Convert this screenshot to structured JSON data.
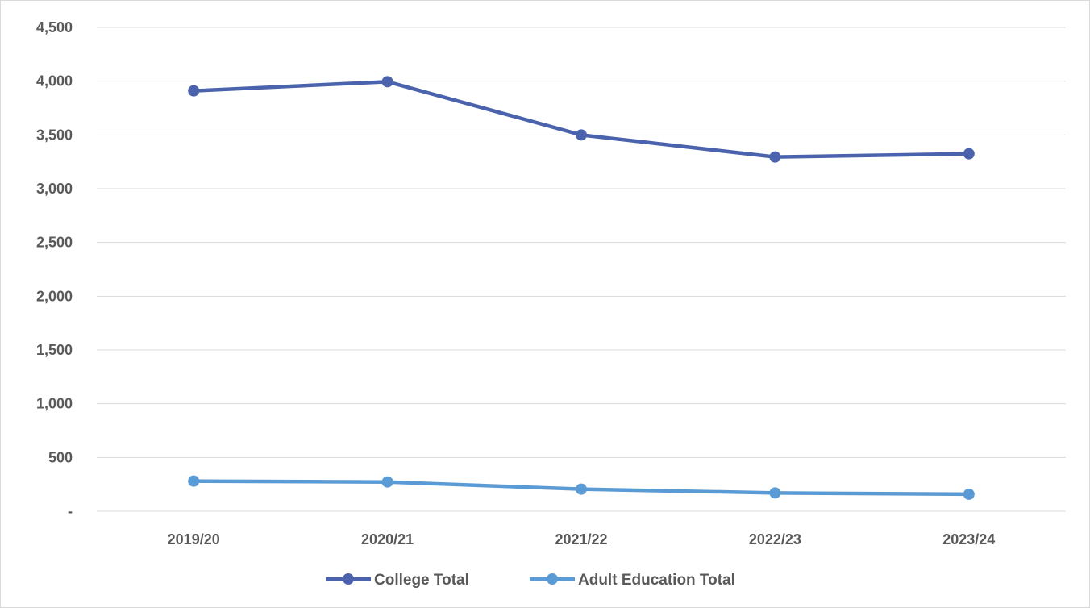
{
  "chart_data": {
    "type": "line",
    "title": "",
    "xlabel": "",
    "ylabel": "",
    "categories": [
      "2019/20",
      "2020/21",
      "2021/22",
      "2022/23",
      "2023/24"
    ],
    "ylim": [
      0,
      4500
    ],
    "y_ticks": [
      0,
      500,
      1000,
      1500,
      2000,
      2500,
      3000,
      3500,
      4000,
      4500
    ],
    "y_tick_labels": [
      "-",
      "500",
      "1,000",
      "1,500",
      "2,000",
      "2,500",
      "3,000",
      "3,500",
      "4,000",
      "4,500"
    ],
    "grid": "horizontal",
    "legend_position": "bottom",
    "series": [
      {
        "name": "College Total",
        "color": "#4a63ac",
        "values": [
          3910,
          3995,
          3500,
          3295,
          3325
        ]
      },
      {
        "name": "Adult Education Total",
        "color": "#5b9bd5",
        "values": [
          280,
          272,
          205,
          170,
          158
        ]
      }
    ]
  }
}
